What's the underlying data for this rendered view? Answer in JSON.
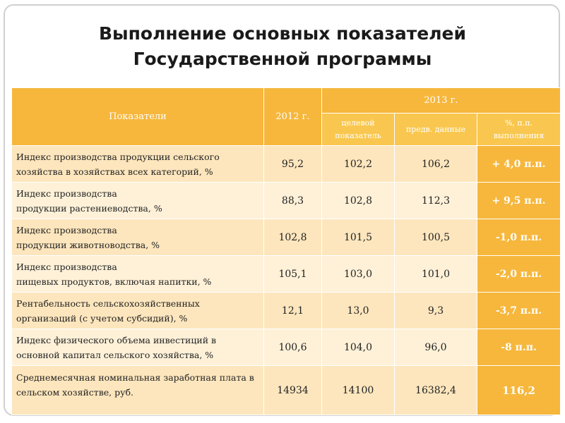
{
  "title_line1": "Выполнение основных показателей",
  "title_line2": "Государственной программы",
  "header": {
    "indicators": "Показатели",
    "year_2012": "2012 г.",
    "year_2013": "2013 г.",
    "target": "целевой показатель",
    "prelim": "предв. данные",
    "pct": "%, п.п. выполнения"
  },
  "rows": [
    {
      "line1": "Индекс производства продукции сельского",
      "line2": "хозяйства в хозяйствах всех категорий, %",
      "y2012": "95,2",
      "target": "102,2",
      "prelim": "106,2",
      "pct": "+ 4,0 п.п."
    },
    {
      "line1": "Индекс производства",
      "line2": "продукции растениеводства, %",
      "y2012": "88,3",
      "target": "102,8",
      "prelim": "112,3",
      "pct": "+ 9,5 п.п."
    },
    {
      "line1": "Индекс производства",
      "line2": "продукции животноводства, %",
      "y2012": "102,8",
      "target": "101,5",
      "prelim": "100,5",
      "pct": "-1,0 п.п."
    },
    {
      "line1": "Индекс производства",
      "line2": "пищевых продуктов, включая напитки, %",
      "y2012": "105,1",
      "target": "103,0",
      "prelim": "101,0",
      "pct": "-2,0 п.п."
    },
    {
      "line1": "Рентабельность сельскохозяйственных",
      "line2": "организаций (с учетом субсидий), %",
      "y2012": "12,1",
      "target": "13,0",
      "prelim": "9,3",
      "pct": "-3,7 п.п."
    },
    {
      "line1": "Индекс физического объема инвестиций в",
      "line2": "основной капитал сельского хозяйства, %",
      "y2012": "100,6",
      "target": "104,0",
      "prelim": "96,0",
      "pct": "-8 п.п."
    },
    {
      "line1": "Среднемесячная номинальная заработная плата в",
      "line2": "сельском хозяйстве, руб.",
      "y2012": "14934",
      "target": "14100",
      "prelim": "16382,4",
      "pct": "116,2"
    }
  ]
}
